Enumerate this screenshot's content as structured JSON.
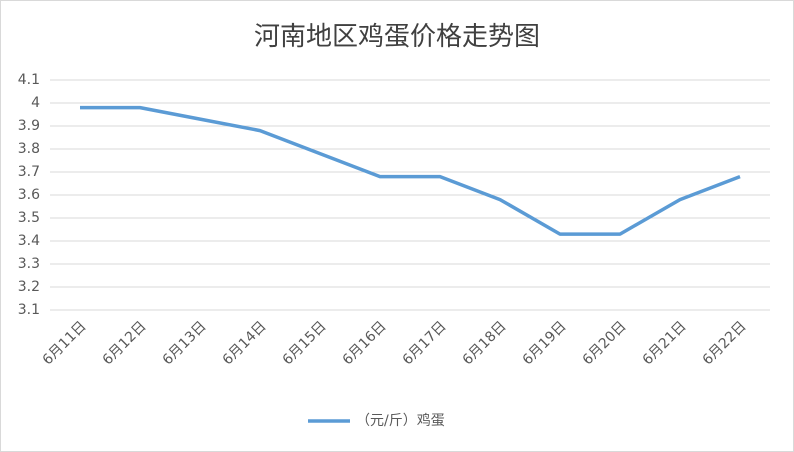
{
  "chart_data": {
    "type": "line",
    "title": "河南地区鸡蛋价格走势图",
    "categories": [
      "6月11日",
      "6月12日",
      "6月13日",
      "6月14日",
      "6月15日",
      "6月16日",
      "6月17日",
      "6月18日",
      "6月19日",
      "6月20日",
      "6月21日",
      "6月22日"
    ],
    "series": [
      {
        "name": "（元/斤）鸡蛋",
        "color": "#5b9bd5",
        "values": [
          3.98,
          3.98,
          3.93,
          3.88,
          3.78,
          3.68,
          3.68,
          3.58,
          3.43,
          3.43,
          3.58,
          3.68
        ]
      }
    ],
    "ylim": [
      3.1,
      4.1
    ],
    "yticks": [
      3.1,
      3.2,
      3.3,
      3.4,
      3.5,
      3.6,
      3.7,
      3.8,
      3.9,
      4,
      4.1
    ],
    "grid": true,
    "legend": "bottom"
  }
}
